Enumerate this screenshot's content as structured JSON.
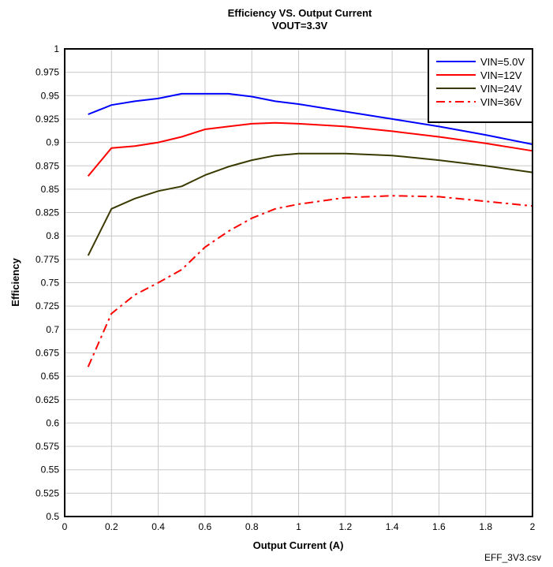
{
  "chart_data": {
    "type": "line",
    "title": "Efficiency VS. Output Current",
    "subtitle": "VOUT=3.3V",
    "xlabel": "Output Current (A)",
    "ylabel": "Efficiency",
    "xlim": [
      0,
      2
    ],
    "ylim": [
      0.5,
      1
    ],
    "x_ticks": [
      "0",
      "0.2",
      "0.4",
      "0.6",
      "0.8",
      "1",
      "1.2",
      "1.4",
      "1.6",
      "1.8",
      "2"
    ],
    "y_ticks": [
      "0.5",
      "0.525",
      "0.55",
      "0.575",
      "0.6",
      "0.625",
      "0.65",
      "0.675",
      "0.7",
      "0.725",
      "0.75",
      "0.775",
      "0.8",
      "0.825",
      "0.85",
      "0.875",
      "0.9",
      "0.925",
      "0.95",
      "0.975",
      "1"
    ],
    "grid": true,
    "legend_position": "top-right",
    "footnote": "EFF_3V3.csv",
    "series": [
      {
        "name": "VIN=5.0V",
        "color": "#0000ff",
        "style": "solid",
        "x": [
          0.1,
          0.2,
          0.3,
          0.4,
          0.5,
          0.6,
          0.7,
          0.8,
          0.9,
          1.0,
          1.2,
          1.4,
          1.6,
          1.8,
          2.0
        ],
        "y": [
          0.93,
          0.94,
          0.944,
          0.947,
          0.952,
          0.952,
          0.952,
          0.949,
          0.944,
          0.941,
          0.933,
          0.925,
          0.917,
          0.908,
          0.898
        ]
      },
      {
        "name": "VIN=12V",
        "color": "#ff0000",
        "style": "solid",
        "x": [
          0.1,
          0.2,
          0.3,
          0.4,
          0.5,
          0.6,
          0.7,
          0.8,
          0.9,
          1.0,
          1.2,
          1.4,
          1.6,
          1.8,
          2.0
        ],
        "y": [
          0.864,
          0.894,
          0.896,
          0.9,
          0.906,
          0.914,
          0.917,
          0.92,
          0.921,
          0.92,
          0.917,
          0.912,
          0.906,
          0.899,
          0.891
        ]
      },
      {
        "name": "VIN=24V",
        "color": "#3a3a00",
        "style": "solid",
        "x": [
          0.1,
          0.2,
          0.3,
          0.4,
          0.5,
          0.6,
          0.7,
          0.8,
          0.9,
          1.0,
          1.2,
          1.4,
          1.6,
          1.8,
          2.0
        ],
        "y": [
          0.779,
          0.829,
          0.84,
          0.848,
          0.853,
          0.865,
          0.874,
          0.881,
          0.886,
          0.888,
          0.888,
          0.886,
          0.881,
          0.875,
          0.868
        ]
      },
      {
        "name": "VIN=36V",
        "color": "#ff0000",
        "style": "dashdot",
        "x": [
          0.1,
          0.2,
          0.3,
          0.4,
          0.5,
          0.6,
          0.7,
          0.8,
          0.9,
          1.0,
          1.2,
          1.4,
          1.6,
          1.8,
          2.0
        ],
        "y": [
          0.66,
          0.717,
          0.737,
          0.75,
          0.764,
          0.788,
          0.805,
          0.819,
          0.829,
          0.834,
          0.841,
          0.843,
          0.842,
          0.837,
          0.832
        ]
      }
    ]
  }
}
